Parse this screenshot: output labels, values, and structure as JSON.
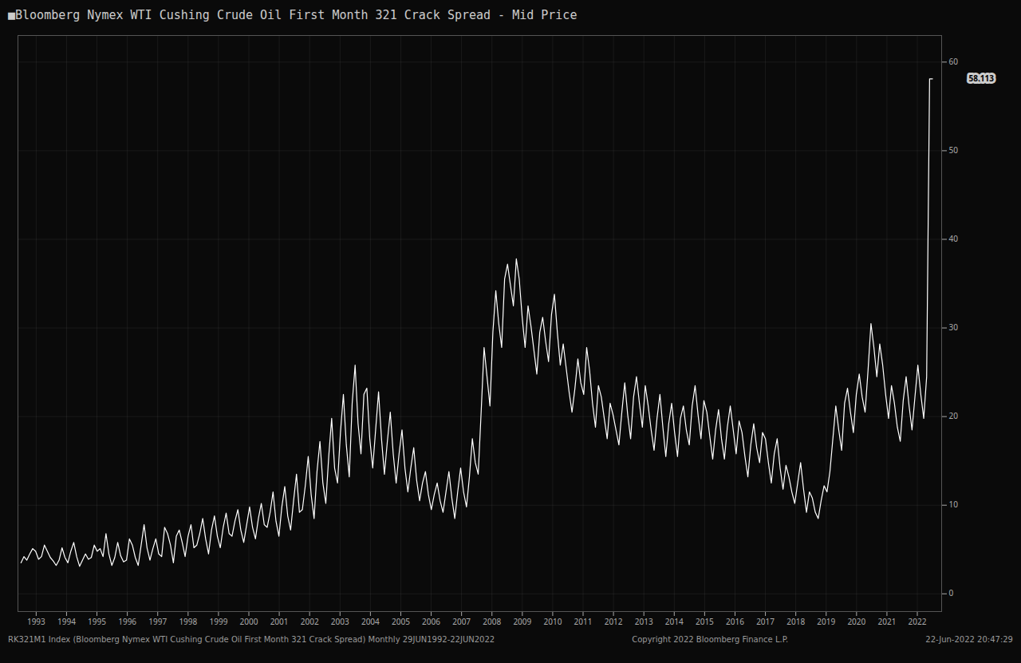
{
  "chart_data": {
    "type": "line",
    "title": "■Bloomberg Nymex WTI Cushing Crude Oil First Month 321 Crack Spread - Mid Price",
    "color": "#ffffff",
    "grid": true,
    "xlim": [
      1992.4,
      2022.8
    ],
    "xticks": [
      1993,
      1994,
      1995,
      1996,
      1997,
      1998,
      1999,
      2000,
      2001,
      2002,
      2003,
      2004,
      2005,
      2006,
      2007,
      2008,
      2009,
      2010,
      2011,
      2012,
      2013,
      2014,
      2015,
      2016,
      2017,
      2018,
      2019,
      2020,
      2021,
      2022
    ],
    "ylim": [
      -2,
      63
    ],
    "yticks": [
      0,
      10,
      20,
      30,
      40,
      50,
      60
    ],
    "annotations": [
      {
        "text": "58.113",
        "y": 58.113
      },
      {
        "text": "RK321M1 Index (Bloomberg Nymex WTI Cushing Crude Oil First Month 321 Crack Spread)  Monthly 29JUN1992-22JUN2022"
      },
      {
        "text": "Copyright 2022 Bloomberg Finance L.P."
      },
      {
        "text": "22-Jun-2022 20:47:29"
      }
    ],
    "x": [
      1992.5,
      1992.5965,
      1992.6929,
      1992.7894,
      1992.8859,
      1992.9823,
      1993.0788,
      1993.1752,
      1993.2717,
      1993.3682,
      1993.4646,
      1993.5611,
      1993.6576,
      1993.754,
      1993.8505,
      1993.9469,
      1994.0434,
      1994.1399,
      1994.2363,
      1994.3328,
      1994.4293,
      1994.5257,
      1994.6222,
      1994.7186,
      1994.8151,
      1994.9116,
      1995.008,
      1995.1045,
      1995.201,
      1995.2974,
      1995.3939,
      1995.4904,
      1995.5868,
      1995.6833,
      1995.7797,
      1995.8762,
      1995.9727,
      1996.0691,
      1996.1656,
      1996.2621,
      1996.3585,
      1996.455,
      1996.5514,
      1996.6479,
      1996.7444,
      1996.8408,
      1996.9373,
      1997.0338,
      1997.1302,
      1997.2267,
      1997.3232,
      1997.4196,
      1997.5161,
      1997.6125,
      1997.709,
      1997.8055,
      1997.9019,
      1997.9984,
      1998.0949,
      1998.1913,
      1998.2878,
      1998.3842,
      1998.4807,
      1998.5772,
      1998.6736,
      1998.7701,
      1998.8666,
      1998.963,
      1999.0595,
      1999.1559,
      1999.2524,
      1999.3489,
      1999.4453,
      1999.5418,
      1999.6383,
      1999.7347,
      1999.8312,
      1999.9277,
      2000.0241,
      2000.1206,
      2000.217,
      2000.3135,
      2000.41,
      2000.5064,
      2000.6029,
      2000.6994,
      2000.7958,
      2000.8923,
      2000.9887,
      2001.0852,
      2001.1817,
      2001.2781,
      2001.3746,
      2001.4711,
      2001.5675,
      2001.664,
      2001.7605,
      2001.8569,
      2001.9534,
      2002.0498,
      2002.1463,
      2002.2428,
      2002.3392,
      2002.4357,
      2002.5322,
      2002.6286,
      2002.7251,
      2002.8215,
      2002.918,
      2003.0145,
      2003.1109,
      2003.2074,
      2003.3039,
      2003.4003,
      2003.4968,
      2003.5932,
      2003.6897,
      2003.7862,
      2003.8826,
      2003.9791,
      2004.0756,
      2004.172,
      2004.2685,
      2004.365,
      2004.4614,
      2004.5579,
      2004.6543,
      2004.7508,
      2004.8473,
      2004.9437,
      2005.0402,
      2005.1367,
      2005.2331,
      2005.3296,
      2005.426,
      2005.5225,
      2005.619,
      2005.7154,
      2005.8119,
      2005.9084,
      2006.0048,
      2006.1013,
      2006.1977,
      2006.2942,
      2006.3907,
      2006.4871,
      2006.5836,
      2006.6801,
      2006.7765,
      2006.873,
      2006.9695,
      2007.0659,
      2007.1624,
      2007.2588,
      2007.3553,
      2007.4518,
      2007.5482,
      2007.6447,
      2007.7412,
      2007.8376,
      2007.9341,
      2008.0305,
      2008.127,
      2008.2235,
      2008.3199,
      2008.4164,
      2008.5129,
      2008.6093,
      2008.7058,
      2008.8023,
      2008.8987,
      2008.9952,
      2009.0916,
      2009.1881,
      2009.2846,
      2009.381,
      2009.4775,
      2009.574,
      2009.6704,
      2009.7669,
      2009.8633,
      2009.9598,
      2010.0563,
      2010.1527,
      2010.2492,
      2010.3457,
      2010.4421,
      2010.5386,
      2010.635,
      2010.7315,
      2010.828,
      2010.9244,
      2011.0209,
      2011.1174,
      2011.2138,
      2011.3103,
      2011.4068,
      2011.5032,
      2011.5997,
      2011.6961,
      2011.7926,
      2011.8891,
      2011.9855,
      2012.082,
      2012.1785,
      2012.2749,
      2012.3714,
      2012.4678,
      2012.5643,
      2012.6608,
      2012.7572,
      2012.8537,
      2012.9502,
      2013.0466,
      2013.1431,
      2013.2395,
      2013.336,
      2013.4325,
      2013.5289,
      2013.6254,
      2013.7219,
      2013.8183,
      2013.9148,
      2014.0113,
      2014.1077,
      2014.2042,
      2014.3006,
      2014.3971,
      2014.4936,
      2014.59,
      2014.6865,
      2014.783,
      2014.8794,
      2014.9759,
      2015.0723,
      2015.1688,
      2015.2653,
      2015.3617,
      2015.4582,
      2015.5547,
      2015.6511,
      2015.7476,
      2015.8441,
      2015.9405,
      2016.037,
      2016.1334,
      2016.2299,
      2016.3264,
      2016.4228,
      2016.5193,
      2016.6158,
      2016.7122,
      2016.8087,
      2016.9051,
      2017.0016,
      2017.0981,
      2017.1945,
      2017.291,
      2017.3875,
      2017.4839,
      2017.5804,
      2017.6768,
      2017.7733,
      2017.8698,
      2017.9662,
      2018.0627,
      2018.1592,
      2018.2556,
      2018.3521,
      2018.4486,
      2018.545,
      2018.6415,
      2018.7379,
      2018.8344,
      2018.9309,
      2019.0273,
      2019.1238,
      2019.2203,
      2019.3167,
      2019.4132,
      2019.5096,
      2019.6061,
      2019.7026,
      2019.799,
      2019.8955,
      2019.992,
      2020.0884,
      2020.1849,
      2020.2814,
      2020.3778,
      2020.4743,
      2020.5707,
      2020.6672,
      2020.7637,
      2020.8601,
      2020.9566,
      2021.0531,
      2021.1495,
      2021.246,
      2021.3424,
      2021.4389,
      2021.5354,
      2021.6318,
      2021.7283,
      2021.8248,
      2021.9212,
      2022.0177,
      2022.1141,
      2022.2106,
      2022.3071,
      2022.4035,
      2022.5
    ],
    "values": [
      3.5,
      4.2,
      3.8,
      4.5,
      5.1,
      4.8,
      3.9,
      4.2,
      5.5,
      4.8,
      4.1,
      3.7,
      3.2,
      3.8,
      5.2,
      4.1,
      3.5,
      4.8,
      5.8,
      4.2,
      3.1,
      3.8,
      4.5,
      3.9,
      4.1,
      5.5,
      4.8,
      5.1,
      4.2,
      6.8,
      4.5,
      3.2,
      4.1,
      5.8,
      4.3,
      3.6,
      3.8,
      6.2,
      5.5,
      4.1,
      3.2,
      5.5,
      7.8,
      5.2,
      3.8,
      5.1,
      6.2,
      4.5,
      4.2,
      7.5,
      6.8,
      5.5,
      3.5,
      6.5,
      7.2,
      5.8,
      4.2,
      6.5,
      7.8,
      5.2,
      5.5,
      6.8,
      8.5,
      6.2,
      4.5,
      7.2,
      8.8,
      6.5,
      5.2,
      7.5,
      9.1,
      6.8,
      6.5,
      8.2,
      9.5,
      7.2,
      5.8,
      7.8,
      9.8,
      7.5,
      6.2,
      8.5,
      10.2,
      7.8,
      7.5,
      9.2,
      11.5,
      8.2,
      6.5,
      9.8,
      12.1,
      8.8,
      7.2,
      10.5,
      13.5,
      9.2,
      9.5,
      12.2,
      15.5,
      11.2,
      8.5,
      13.8,
      17.2,
      12.5,
      10.2,
      15.5,
      19.8,
      14.2,
      12.5,
      18.2,
      22.5,
      16.8,
      13.2,
      21.5,
      25.8,
      19.2,
      15.8,
      22.5,
      23.2,
      17.5,
      14.2,
      18.5,
      22.8,
      17.5,
      13.5,
      17.2,
      20.5,
      15.8,
      12.5,
      15.8,
      18.5,
      14.2,
      11.5,
      14.2,
      16.5,
      12.8,
      10.5,
      12.5,
      13.8,
      11.2,
      9.5,
      11.2,
      12.5,
      10.5,
      9.2,
      11.5,
      13.8,
      10.8,
      8.5,
      11.5,
      14.2,
      11.5,
      9.8,
      13.2,
      17.5,
      14.8,
      13.5,
      20.5,
      27.8,
      24.5,
      21.2,
      29.5,
      34.2,
      30.5,
      27.8,
      35.5,
      37.2,
      34.8,
      32.5,
      37.8,
      35.5,
      31.2,
      27.8,
      32.5,
      30.2,
      27.5,
      24.8,
      29.5,
      31.2,
      28.5,
      26.2,
      31.5,
      33.8,
      29.5,
      25.8,
      28.2,
      25.5,
      22.8,
      20.5,
      23.2,
      26.5,
      23.8,
      22.5,
      27.8,
      25.2,
      21.5,
      18.8,
      23.5,
      22.2,
      19.8,
      17.5,
      21.5,
      20.2,
      18.5,
      16.8,
      20.5,
      23.8,
      20.2,
      17.5,
      22.2,
      24.5,
      21.5,
      18.8,
      23.5,
      21.2,
      18.5,
      16.2,
      19.8,
      22.5,
      18.8,
      15.5,
      19.2,
      21.5,
      18.2,
      15.5,
      19.8,
      21.2,
      18.5,
      16.8,
      21.2,
      23.5,
      20.2,
      17.5,
      21.8,
      20.5,
      17.8,
      15.2,
      18.5,
      20.8,
      17.5,
      15.2,
      18.8,
      21.2,
      18.5,
      15.8,
      19.5,
      18.2,
      15.5,
      13.2,
      16.8,
      19.2,
      16.5,
      14.8,
      18.2,
      17.5,
      14.8,
      12.5,
      15.8,
      17.5,
      14.2,
      11.8,
      14.5,
      13.2,
      11.5,
      10.2,
      12.5,
      14.8,
      11.8,
      9.2,
      11.5,
      10.8,
      9.2,
      8.5,
      10.5,
      12.2,
      11.5,
      13.8,
      17.5,
      21.2,
      18.5,
      16.2,
      21.5,
      23.2,
      20.5,
      18.2,
      22.5,
      24.8,
      22.2,
      20.5,
      25.2,
      30.5,
      27.8,
      24.5,
      28.2,
      25.8,
      22.5,
      19.8,
      23.5,
      21.5,
      18.8,
      17.2,
      21.8,
      24.5,
      21.2,
      18.5,
      22.2,
      25.8,
      22.5,
      19.8,
      24.5,
      58.113,
      58.113
    ]
  }
}
